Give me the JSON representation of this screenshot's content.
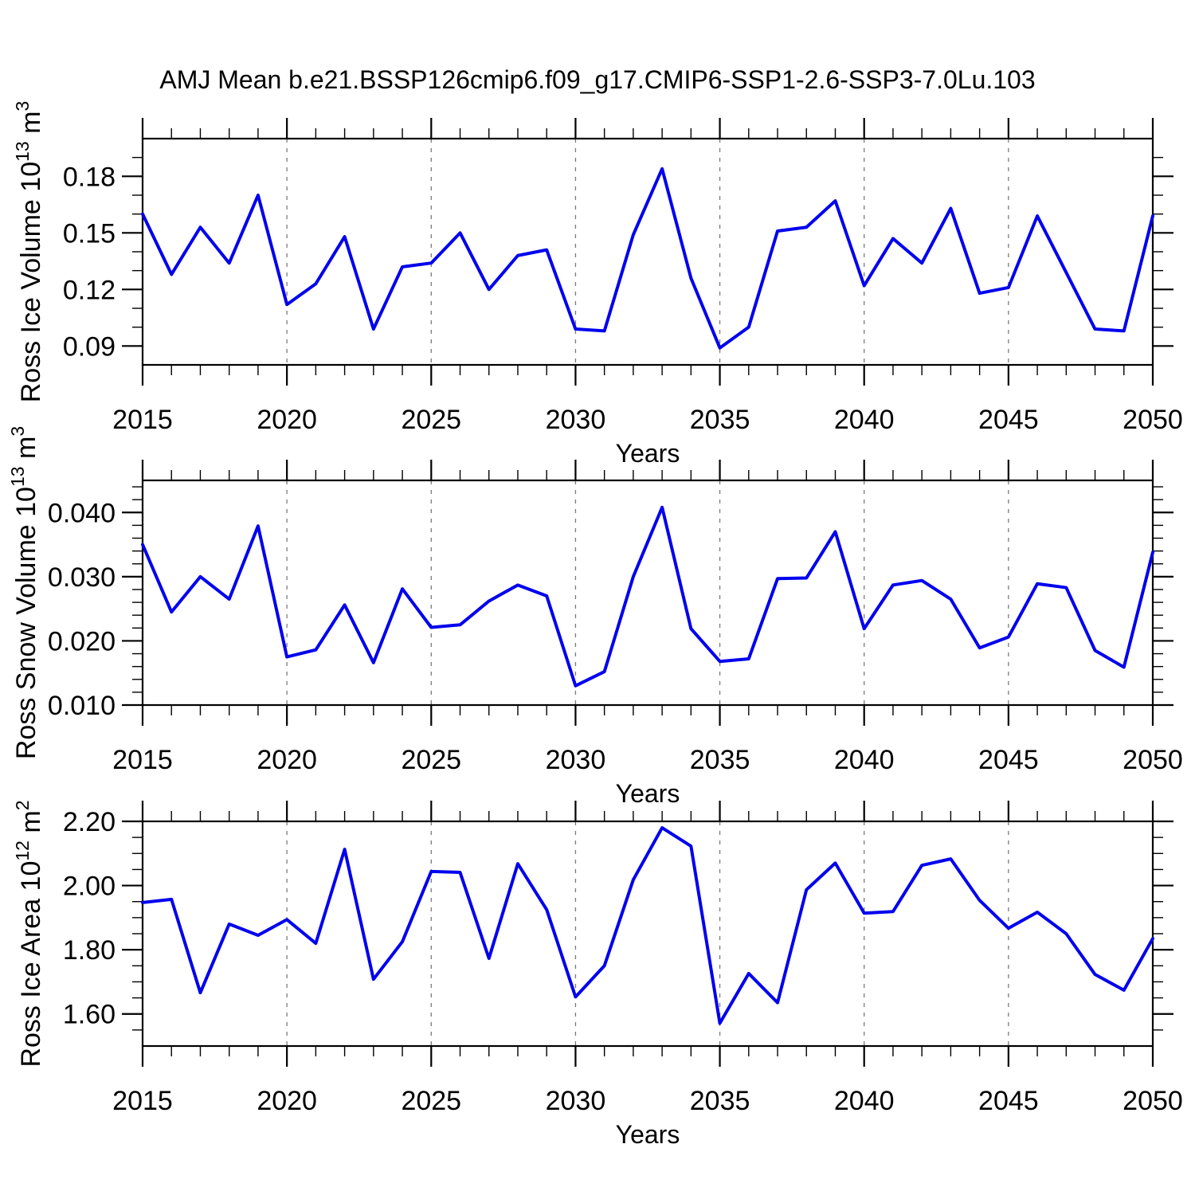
{
  "title": "AMJ Mean b.e21.BSSP126cmip6.f09_g17.CMIP6-SSP1-2.6-SSP3-7.0Lu.103",
  "line_color": "#0000EE",
  "grid_color": "#7a7a7a",
  "axis_color": "#000000",
  "chart_data": [
    {
      "id": "ross-ice-volume",
      "type": "line",
      "xlabel": "Years",
      "ylabel_parts": [
        "Ross Ice Volume 10",
        "13",
        " m",
        "3"
      ],
      "x": [
        2015,
        2016,
        2017,
        2018,
        2019,
        2020,
        2021,
        2022,
        2023,
        2024,
        2025,
        2026,
        2027,
        2028,
        2029,
        2030,
        2031,
        2032,
        2033,
        2034,
        2035,
        2036,
        2037,
        2038,
        2039,
        2040,
        2041,
        2042,
        2043,
        2044,
        2045,
        2046,
        2047,
        2048,
        2049,
        2050
      ],
      "values": [
        0.16,
        0.128,
        0.153,
        0.134,
        0.17,
        0.112,
        0.123,
        0.148,
        0.099,
        0.132,
        0.134,
        0.15,
        0.12,
        0.138,
        0.141,
        0.099,
        0.098,
        0.149,
        0.184,
        0.126,
        0.089,
        0.1,
        0.151,
        0.153,
        0.167,
        0.122,
        0.147,
        0.134,
        0.163,
        0.118,
        0.121,
        0.159,
        0.129,
        0.099,
        0.098,
        0.159
      ],
      "ylim": [
        0.08,
        0.2
      ],
      "yticks": [
        0.09,
        0.12,
        0.15,
        0.18
      ],
      "ytick_labels": [
        "0.09",
        "0.12",
        "0.15",
        "0.18"
      ],
      "y_minor_step": 0.01,
      "xticks": [
        2015,
        2020,
        2025,
        2030,
        2035,
        2040,
        2045,
        2050
      ],
      "xtick_labels": [
        "2015",
        "2020",
        "2025",
        "2030",
        "2035",
        "2040",
        "2045",
        "2050"
      ],
      "gridlines_x": [
        2020,
        2025,
        2030,
        2035,
        2040,
        2045
      ],
      "grid": "vertical-dashed"
    },
    {
      "id": "ross-snow-volume",
      "type": "line",
      "xlabel": "Years",
      "ylabel_parts": [
        "Ross Snow Volume 10",
        "13",
        " m",
        "3"
      ],
      "x": [
        2015,
        2016,
        2017,
        2018,
        2019,
        2020,
        2021,
        2022,
        2023,
        2024,
        2025,
        2026,
        2027,
        2028,
        2029,
        2030,
        2031,
        2032,
        2033,
        2034,
        2035,
        2036,
        2037,
        2038,
        2039,
        2040,
        2041,
        2042,
        2043,
        2044,
        2045,
        2046,
        2047,
        2048,
        2049,
        2050
      ],
      "values": [
        0.035,
        0.0245,
        0.03,
        0.0265,
        0.0379,
        0.0175,
        0.0186,
        0.0256,
        0.0166,
        0.0281,
        0.0221,
        0.0225,
        0.0262,
        0.0287,
        0.027,
        0.013,
        0.0152,
        0.03,
        0.0408,
        0.0219,
        0.0168,
        0.0172,
        0.0297,
        0.0298,
        0.037,
        0.0219,
        0.0287,
        0.0294,
        0.0265,
        0.0189,
        0.0206,
        0.0289,
        0.0283,
        0.0185,
        0.0159,
        0.0338
      ],
      "ylim": [
        0.01,
        0.045
      ],
      "yticks": [
        0.01,
        0.02,
        0.03,
        0.04
      ],
      "ytick_labels": [
        "0.010",
        "0.020",
        "0.030",
        "0.040"
      ],
      "y_minor_step": 0.002,
      "xticks": [
        2015,
        2020,
        2025,
        2030,
        2035,
        2040,
        2045,
        2050
      ],
      "xtick_labels": [
        "2015",
        "2020",
        "2025",
        "2030",
        "2035",
        "2040",
        "2045",
        "2050"
      ],
      "gridlines_x": [
        2020,
        2025,
        2030,
        2035,
        2040,
        2045
      ],
      "grid": "vertical-dashed"
    },
    {
      "id": "ross-ice-area",
      "type": "line",
      "xlabel": "Years",
      "ylabel_parts": [
        "Ross Ice Area 10",
        "12",
        " m",
        "2"
      ],
      "x": [
        2015,
        2016,
        2017,
        2018,
        2019,
        2020,
        2021,
        2022,
        2023,
        2024,
        2025,
        2026,
        2027,
        2028,
        2029,
        2030,
        2031,
        2032,
        2033,
        2034,
        2035,
        2036,
        2037,
        2038,
        2039,
        2040,
        2041,
        2042,
        2043,
        2044,
        2045,
        2046,
        2047,
        2048,
        2049,
        2050
      ],
      "values": [
        1.947,
        1.957,
        1.666,
        1.88,
        1.845,
        1.894,
        1.82,
        2.113,
        1.708,
        1.825,
        2.044,
        2.041,
        1.773,
        2.068,
        1.925,
        1.653,
        1.75,
        2.018,
        2.18,
        2.123,
        1.571,
        1.726,
        1.635,
        1.987,
        2.07,
        1.914,
        1.919,
        2.063,
        2.083,
        1.954,
        1.867,
        1.917,
        1.85,
        1.723,
        1.674,
        1.835
      ],
      "ylim": [
        1.5,
        2.2
      ],
      "yticks": [
        1.6,
        1.8,
        2.0,
        2.2
      ],
      "ytick_labels": [
        "1.60",
        "1.80",
        "2.00",
        "2.20"
      ],
      "y_minor_step": 0.05,
      "xticks": [
        2015,
        2020,
        2025,
        2030,
        2035,
        2040,
        2045,
        2050
      ],
      "xtick_labels": [
        "2015",
        "2020",
        "2025",
        "2030",
        "2035",
        "2040",
        "2045",
        "2050"
      ],
      "gridlines_x": [
        2020,
        2025,
        2030,
        2035,
        2040,
        2045
      ],
      "grid": "vertical-dashed"
    }
  ]
}
